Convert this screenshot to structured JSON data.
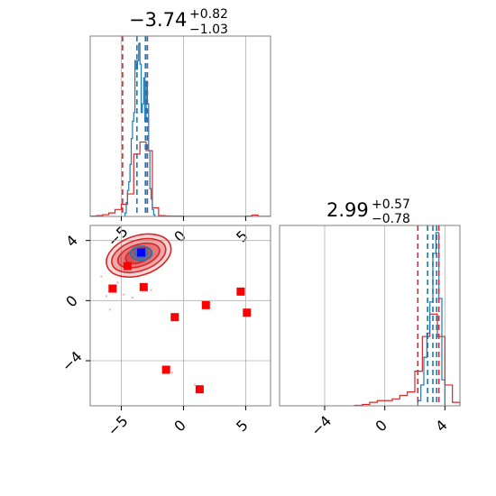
{
  "colors": {
    "primary": "#d62728",
    "secondary": "#1f77b4",
    "truth": "#0000ff",
    "marker": "#ff0000"
  },
  "chart_data": [
    {
      "type": "histogram",
      "panel": "top-left",
      "title": {
        "main": "−3.74",
        "sup": "+0.82",
        "sub": "−1.03"
      },
      "xlim": [
        -7.5,
        7.0
      ],
      "xticks": [
        -5,
        0,
        5
      ],
      "grid": true,
      "quantile_lines": {
        "primary": [
          -4.9,
          -2.9
        ],
        "secondary": [
          -3.74,
          -3.06,
          -2.92
        ]
      },
      "series": [
        {
          "color": "primary",
          "x": [
            -7.25,
            -6.75,
            -6.25,
            -5.75,
            -5.25,
            -4.75,
            -4.25,
            -3.75,
            -3.25,
            -2.75,
            -2.25,
            -1.75,
            -1.25,
            -0.75,
            -0.25,
            0.25,
            0.75,
            1.25,
            1.75,
            2.25,
            2.75,
            3.25,
            3.75,
            4.25,
            4.75,
            5.25,
            5.75,
            6.25,
            6.75
          ],
          "y": [
            0.002,
            0.005,
            0.01,
            0.02,
            0.04,
            0.07,
            0.13,
            0.36,
            0.43,
            0.38,
            0.05,
            0.005,
            0.003,
            0.002,
            0.002,
            0.001,
            0.001,
            0.001,
            0.001,
            0.001,
            0.001,
            0.001,
            0.001,
            0.001,
            0.001,
            0.002,
            0.008,
            0.001,
            0.001
          ]
        },
        {
          "color": "secondary",
          "x": [
            -4.65,
            -4.55,
            -4.45,
            -4.35,
            -4.25,
            -4.15,
            -4.05,
            -3.95,
            -3.85,
            -3.75,
            -3.65,
            -3.55,
            -3.45,
            -3.35,
            -3.25,
            -3.15,
            -3.05,
            -2.95,
            -2.85,
            -2.75,
            -2.65,
            -2.55,
            -2.45,
            -2.35
          ],
          "y": [
            0.02,
            0.08,
            0.15,
            0.2,
            0.3,
            0.45,
            0.55,
            0.6,
            0.9,
            0.85,
            0.9,
            1.0,
            0.88,
            0.6,
            0.65,
            0.8,
            0.55,
            0.78,
            0.65,
            0.38,
            0.16,
            0.1,
            0.04,
            0.01
          ]
        }
      ]
    },
    {
      "type": "histogram",
      "panel": "bottom-right",
      "title": {
        "main": "2.99",
        "sup": "+0.57",
        "sub": "−0.78"
      },
      "xlim": [
        -7.0,
        5.0
      ],
      "xticks": [
        -4,
        0,
        4
      ],
      "grid": true,
      "quantile_lines": {
        "primary": [
          2.2,
          3.6
        ],
        "secondary": [
          2.85,
          3.2,
          3.45
        ]
      },
      "series": [
        {
          "color": "primary",
          "x": [
            -1.75,
            -1.25,
            -0.75,
            -0.25,
            0.25,
            0.75,
            1.25,
            1.75,
            2.25,
            2.75,
            3.25,
            3.75,
            4.25,
            4.75
          ],
          "y": [
            0.003,
            0.008,
            0.02,
            0.03,
            0.03,
            0.04,
            0.06,
            0.08,
            0.2,
            0.4,
            0.53,
            0.4,
            0.12,
            0.02
          ]
        },
        {
          "color": "secondary",
          "x": [
            2.3,
            2.5,
            2.7,
            2.9,
            3.1,
            3.3,
            3.5,
            3.7,
            3.9
          ],
          "y": [
            0.03,
            0.12,
            0.28,
            0.42,
            0.6,
            0.88,
            1.0,
            0.62,
            0.15
          ]
        }
      ]
    },
    {
      "type": "scatter",
      "panel": "bottom-left",
      "xlim": [
        -7.5,
        7.0
      ],
      "ylim": [
        -7.0,
        5.0
      ],
      "xticks": [
        -5,
        0,
        5
      ],
      "yticks": [
        -4,
        0,
        4
      ],
      "grid": true,
      "density_contours": {
        "primary": {
          "center": [
            -3.6,
            3.0
          ]
        },
        "secondary": {
          "center": [
            -3.4,
            3.15
          ]
        }
      },
      "truth_point": {
        "x": -3.4,
        "y": 3.2
      },
      "points": [
        {
          "x": -5.7,
          "y": 0.8
        },
        {
          "x": -3.2,
          "y": 0.9
        },
        {
          "x": -0.7,
          "y": -1.1
        },
        {
          "x": 1.8,
          "y": -0.3
        },
        {
          "x": 4.6,
          "y": 0.6
        },
        {
          "x": 5.1,
          "y": -0.8
        },
        {
          "x": -1.4,
          "y": -4.6
        },
        {
          "x": 1.3,
          "y": -5.9
        },
        {
          "x": -4.5,
          "y": 2.3
        }
      ]
    }
  ]
}
